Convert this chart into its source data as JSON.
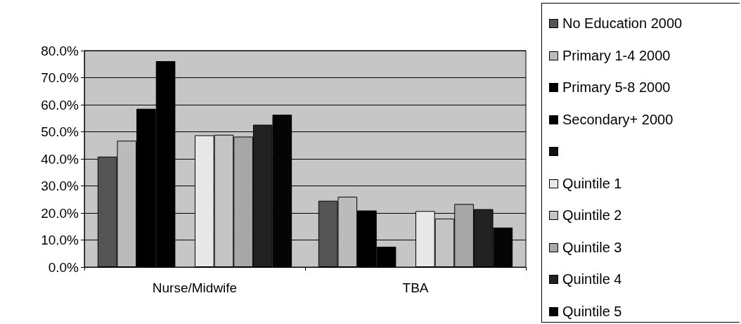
{
  "chart_data": {
    "type": "bar",
    "categories": [
      "Nurse/Midwife",
      "TBA"
    ],
    "series": [
      {
        "name": "No Education 2000",
        "color": "#555555",
        "values": [
          40.8,
          24.5
        ]
      },
      {
        "name": "Primary 1-4 2000",
        "color": "#bbbbbb",
        "values": [
          46.7,
          26.0
        ]
      },
      {
        "name": "Primary 5-8 2000",
        "color": "#000000",
        "values": [
          58.5,
          20.9
        ]
      },
      {
        "name": "Secondary+ 2000",
        "color": "#000000",
        "values": [
          76.1,
          7.5
        ]
      },
      {
        "color": "#111111",
        "values": [
          null,
          null
        ]
      },
      {
        "name": "Quintile 1",
        "color": "#e8e8e8",
        "values": [
          48.7,
          20.7
        ]
      },
      {
        "name": "Quintile 2",
        "color": "#c4c4c4",
        "values": [
          48.9,
          17.9
        ]
      },
      {
        "name": "Quintile 3",
        "color": "#a8a8a8",
        "values": [
          48.2,
          23.3
        ]
      },
      {
        "name": "Quintile 4",
        "color": "#222222",
        "values": [
          52.6,
          21.4
        ]
      },
      {
        "name": "Quintile 5",
        "color": "#050505",
        "values": [
          56.3,
          14.6
        ]
      }
    ],
    "ylim": [
      0,
      80
    ],
    "yticks": [
      {
        "value": 0,
        "label": "0.0%"
      },
      {
        "value": 10,
        "label": "10.0%"
      },
      {
        "value": 20,
        "label": "20.0%"
      },
      {
        "value": 30,
        "label": "30.0%"
      },
      {
        "value": 40,
        "label": "40.0%"
      },
      {
        "value": 50,
        "label": "50.0%"
      },
      {
        "value": 60,
        "label": "60.0%"
      },
      {
        "value": 70,
        "label": "70.0%"
      },
      {
        "value": 80,
        "label": "80.0%"
      }
    ],
    "grid": "y",
    "legend": "right"
  }
}
